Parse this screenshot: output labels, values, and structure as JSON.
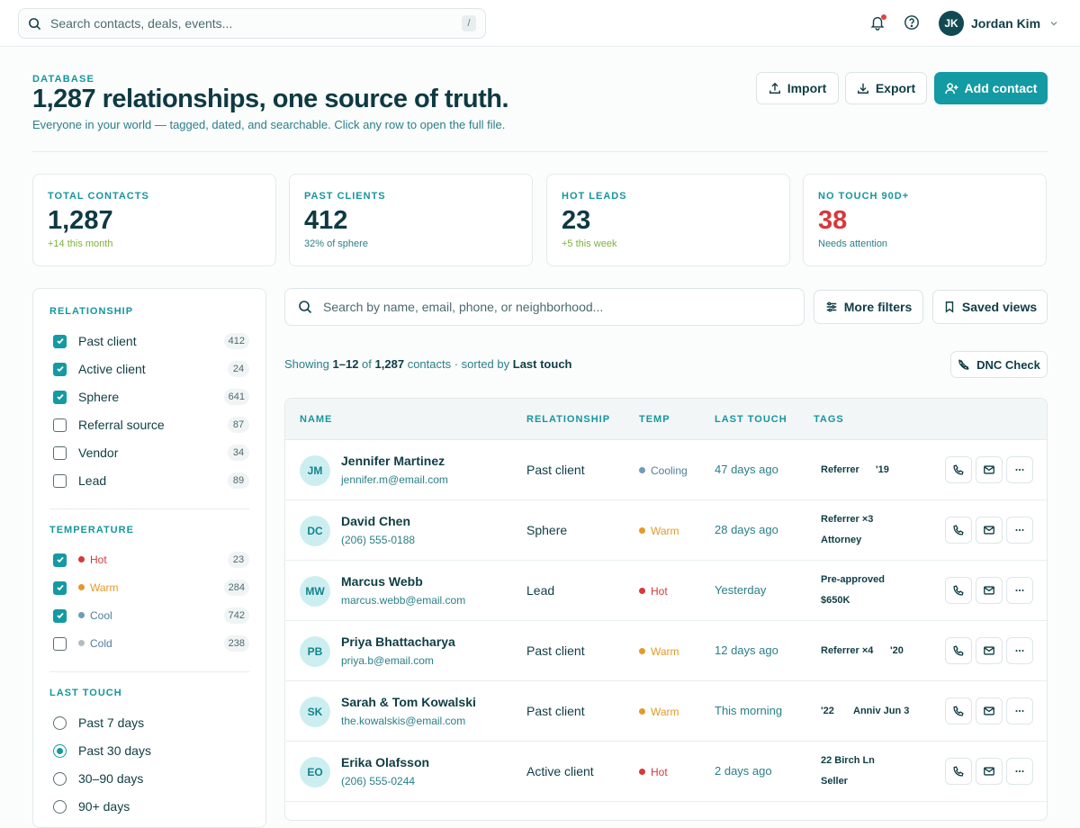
{
  "topbar": {
    "search_placeholder": "Search contacts, deals, events...",
    "shortcut": "/",
    "user_initials": "JK",
    "user_name": "Jordan Kim"
  },
  "header": {
    "eyebrow": "DATABASE",
    "title": "1,287 relationships, one source of truth.",
    "subtitle": "Everyone in your world — tagged, dated, and searchable. Click any row to open the full file.",
    "import_label": "Import",
    "export_label": "Export",
    "add_label": "Add contact"
  },
  "stats": [
    {
      "label": "TOTAL CONTACTS",
      "value": "1,287",
      "note": "+14 this month",
      "value_color": "#0e3a42",
      "note_color": "#7bb33a"
    },
    {
      "label": "PAST CLIENTS",
      "value": "412",
      "note": "32% of sphere",
      "value_color": "#0e3a42",
      "note_color": "#2a7f88"
    },
    {
      "label": "HOT LEADS",
      "value": "23",
      "note": "+5 this week",
      "value_color": "#0e3a42",
      "note_color": "#7bb33a"
    },
    {
      "label": "NO TOUCH 90D+",
      "value": "38",
      "note": "Needs attention",
      "value_color": "#d6393a",
      "note_color": "#2a7f88"
    }
  ],
  "filters": {
    "relationship_title": "RELATIONSHIP",
    "relationship": [
      {
        "label": "Past client",
        "count": "412",
        "checked": true
      },
      {
        "label": "Active client",
        "count": "24",
        "checked": true
      },
      {
        "label": "Sphere",
        "count": "641",
        "checked": true
      },
      {
        "label": "Referral source",
        "count": "87",
        "checked": false
      },
      {
        "label": "Vendor",
        "count": "34",
        "checked": false
      },
      {
        "label": "Lead",
        "count": "89",
        "checked": false
      }
    ],
    "temperature_title": "TEMPERATURE",
    "temperature": [
      {
        "label": "Hot",
        "count": "23",
        "checked": true,
        "color": "#d6393a"
      },
      {
        "label": "Warm",
        "count": "284",
        "checked": true,
        "color": "#e39a2b"
      },
      {
        "label": "Cool",
        "count": "742",
        "checked": true,
        "color": "#6f9bb5"
      },
      {
        "label": "Cold",
        "count": "238",
        "checked": false,
        "color": "#b3bcbf"
      }
    ],
    "last_touch_title": "LAST TOUCH",
    "last_touch": [
      {
        "label": "Past 7 days",
        "selected": false
      },
      {
        "label": "Past 30 days",
        "selected": true
      },
      {
        "label": "30–90 days",
        "selected": false
      },
      {
        "label": "90+ days",
        "selected": false
      }
    ]
  },
  "toolbar": {
    "search_placeholder": "Search by name, email, phone, or neighborhood...",
    "more_filters": "More filters",
    "saved_views": "Saved views",
    "dnc_check": "DNC Check"
  },
  "results": {
    "showing": "Showing",
    "range": "1–12",
    "of": "of",
    "total": "1,287",
    "sorted": "contacts · sorted by",
    "sort_field": "Last touch"
  },
  "table": {
    "headers": [
      "NAME",
      "RELATIONSHIP",
      "TEMP",
      "LAST TOUCH",
      "TAGS"
    ],
    "rows": [
      {
        "initials": "JM",
        "name": "Jennifer Martinez",
        "contact": "jennifer.m@email.com",
        "relationship": "Past client",
        "temp": "Cooling",
        "temp_color": "#6f9bb5",
        "last_touch": "47 days ago",
        "tags": [
          "Referrer",
          "'19"
        ]
      },
      {
        "initials": "DC",
        "name": "David Chen",
        "contact": "(206) 555-0188",
        "relationship": "Sphere",
        "temp": "Warm",
        "temp_color": "#e39a2b",
        "last_touch": "28 days ago",
        "tags": [
          "Referrer ×3",
          "Attorney"
        ]
      },
      {
        "initials": "MW",
        "name": "Marcus Webb",
        "contact": "marcus.webb@email.com",
        "relationship": "Lead",
        "temp": "Hot",
        "temp_color": "#d6393a",
        "last_touch": "Yesterday",
        "tags": [
          "Pre-approved",
          "$650K"
        ]
      },
      {
        "initials": "PB",
        "name": "Priya Bhattacharya",
        "contact": "priya.b@email.com",
        "relationship": "Past client",
        "temp": "Warm",
        "temp_color": "#e39a2b",
        "last_touch": "12 days ago",
        "tags": [
          "Referrer ×4",
          "'20"
        ]
      },
      {
        "initials": "SK",
        "name": "Sarah & Tom Kowalski",
        "contact": "the.kowalskis@email.com",
        "relationship": "Past client",
        "temp": "Warm",
        "temp_color": "#e39a2b",
        "last_touch": "This morning",
        "tags": [
          "'22",
          "Anniv Jun 3"
        ]
      },
      {
        "initials": "EO",
        "name": "Erika Olafsson",
        "contact": "(206) 555-0244",
        "relationship": "Active client",
        "temp": "Hot",
        "temp_color": "#d6393a",
        "last_touch": "2 days ago",
        "tags": [
          "22 Birch Ln",
          "Seller"
        ]
      }
    ]
  }
}
